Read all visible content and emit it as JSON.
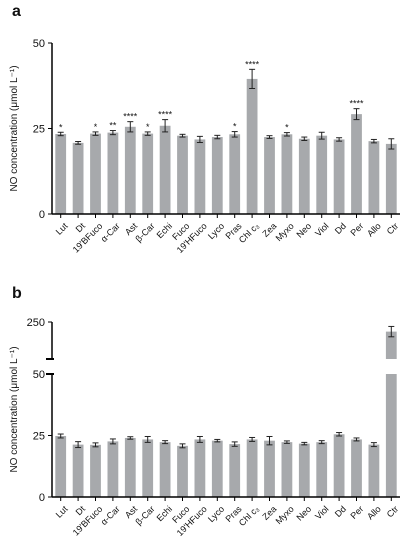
{
  "colors": {
    "bar": "#a7a9ac",
    "axis": "#000000",
    "error": "#222222"
  },
  "chart_data": [
    {
      "panel": "a",
      "type": "bar",
      "ylabel": "NO concentration (μmol L⁻¹)",
      "yticks": [
        0,
        25,
        50
      ],
      "ylim": [
        0,
        50
      ],
      "categories": [
        "Lut",
        "Dt",
        "19'BFuco",
        "α-Car",
        "Ast",
        "β-Car",
        "Echi",
        "Fuco",
        "19'HFuco",
        "Lyco",
        "Pras",
        "Chl c₃",
        "Zea",
        "Myxo",
        "Neo",
        "Viol",
        "Dd",
        "Per",
        "Allo",
        "Ctr"
      ],
      "values": [
        23.4,
        20.8,
        23.5,
        23.8,
        25.5,
        23.5,
        25.8,
        22.9,
        21.8,
        22.5,
        23.3,
        39.5,
        22.5,
        23.3,
        22.0,
        22.9,
        21.8,
        29.2,
        21.3,
        20.5
      ],
      "errors": [
        0.5,
        0.4,
        0.5,
        0.6,
        1.5,
        0.5,
        1.8,
        0.4,
        0.9,
        0.5,
        0.8,
        2.8,
        0.4,
        0.5,
        0.5,
        1.0,
        0.5,
        1.6,
        0.5,
        1.5
      ],
      "significance": [
        "*",
        "",
        "*",
        "**",
        "****",
        "*",
        "****",
        "",
        "",
        "",
        "*",
        "****",
        "",
        "*",
        "",
        "",
        "",
        "****",
        "",
        ""
      ]
    },
    {
      "panel": "b",
      "type": "bar",
      "ylabel": "NO concentration (μmol L⁻¹)",
      "yticks": [
        0,
        25,
        50,
        250
      ],
      "axis_break": [
        50,
        200
      ],
      "categories": [
        "Lut",
        "Dt",
        "19'BFuco",
        "α-Car",
        "Ast",
        "β-Car",
        "Echi",
        "Fuco",
        "19'HFuco",
        "Lyco",
        "Pras",
        "Chl c₃",
        "Zea",
        "Myxo",
        "Neo",
        "Viol",
        "Dd",
        "Per",
        "Allo",
        "Ctr"
      ],
      "values": [
        24.8,
        21.3,
        21.2,
        22.6,
        24.0,
        23.4,
        22.3,
        20.8,
        23.4,
        22.9,
        21.5,
        23.4,
        22.9,
        22.3,
        21.7,
        22.3,
        25.5,
        23.4,
        21.3,
        237
      ],
      "errors": [
        0.8,
        1.2,
        0.8,
        1.0,
        0.5,
        1.2,
        0.6,
        0.8,
        1.2,
        0.5,
        0.9,
        0.8,
        1.7,
        0.5,
        0.5,
        0.6,
        0.7,
        0.6,
        0.8,
        7
      ]
    }
  ]
}
